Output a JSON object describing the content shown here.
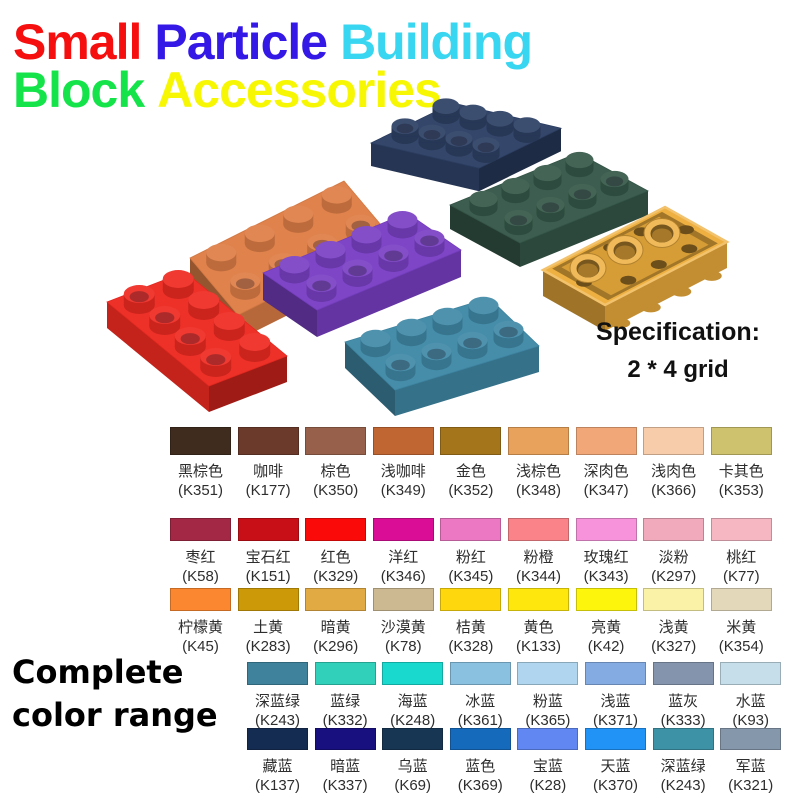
{
  "title": {
    "line1": [
      {
        "text": "Small",
        "color": "#f50f0f"
      },
      {
        "text": "Particle",
        "color": "#3418e6"
      },
      {
        "text": "Building",
        "color": "#38d6f0"
      }
    ],
    "line2": [
      {
        "text": "Block",
        "color": "#14e44a"
      },
      {
        "text": "Accessories",
        "color": "#f7f704"
      }
    ]
  },
  "specification": {
    "line1": "Specification:",
    "line2": "2 * 4 grid"
  },
  "complete_range": {
    "line1": "Complete",
    "line2": "color range"
  },
  "bricks": [
    {
      "name": "navy-blue",
      "color": "#2e4166"
    },
    {
      "name": "orange",
      "color": "#df7f47"
    },
    {
      "name": "dark-green",
      "color": "#36594a"
    },
    {
      "name": "purple",
      "color": "#7b41c6"
    },
    {
      "name": "gold",
      "color": "#eeae3c"
    },
    {
      "name": "red",
      "color": "#ee2b22"
    },
    {
      "name": "teal-blue",
      "color": "#418aa8"
    }
  ],
  "palette": {
    "rows": [
      {
        "swatches": [
          {
            "name": "黑棕色",
            "code": "(K351)",
            "color": "#3f2c1e"
          },
          {
            "name": "咖啡",
            "code": "(K177)",
            "color": "#6b3a2b"
          },
          {
            "name": "棕色",
            "code": "(K350)",
            "color": "#96604a"
          },
          {
            "name": "浅咖啡",
            "code": "(K349)",
            "color": "#c06633"
          },
          {
            "name": "金色",
            "code": "(K352)",
            "color": "#a4751b"
          },
          {
            "name": "浅棕色",
            "code": "(K348)",
            "color": "#e9a25b"
          },
          {
            "name": "深肉色",
            "code": "(K347)",
            "color": "#f2a779"
          },
          {
            "name": "浅肉色",
            "code": "(K366)",
            "color": "#f7ccab"
          },
          {
            "name": "卡其色",
            "code": "(K353)",
            "color": "#cec26e"
          }
        ]
      },
      {
        "swatches": [
          {
            "name": "枣红",
            "code": "(K58)",
            "color": "#a32845"
          },
          {
            "name": "宝石红",
            "code": "(K151)",
            "color": "#c80e16"
          },
          {
            "name": "红色",
            "code": "(K329)",
            "color": "#fb0a0a"
          },
          {
            "name": "洋红",
            "code": "(K346)",
            "color": "#d90d96"
          },
          {
            "name": "粉红",
            "code": "(K345)",
            "color": "#ec77c2"
          },
          {
            "name": "粉橙",
            "code": "(K344)",
            "color": "#f98389"
          },
          {
            "name": "玫瑰红",
            "code": "(K343)",
            "color": "#f793db"
          },
          {
            "name": "淡粉",
            "code": "(K297)",
            "color": "#f0aabb"
          },
          {
            "name": "桃红",
            "code": "(K77)",
            "color": "#f6b7c3"
          }
        ]
      },
      {
        "swatches": [
          {
            "name": "柠檬黄",
            "code": "(K45)",
            "color": "#fb8830"
          },
          {
            "name": "土黄",
            "code": "(K283)",
            "color": "#cc9a08"
          },
          {
            "name": "暗黄",
            "code": "(K296)",
            "color": "#e2aa42"
          },
          {
            "name": "沙漠黄",
            "code": "(K78)",
            "color": "#ccb992"
          },
          {
            "name": "桔黄",
            "code": "(K328)",
            "color": "#fed80d"
          },
          {
            "name": "黄色",
            "code": "(K133)",
            "color": "#fee70d"
          },
          {
            "name": "亮黄",
            "code": "(K42)",
            "color": "#fef50d"
          },
          {
            "name": "浅黄",
            "code": "(K327)",
            "color": "#faf3a7"
          },
          {
            "name": "米黄",
            "code": "(K354)",
            "color": "#e3d9ba"
          }
        ]
      },
      {
        "swatches": [
          {
            "name": "深蓝绿",
            "code": "(K243)",
            "color": "#3e839b"
          },
          {
            "name": "蓝绿",
            "code": "(K332)",
            "color": "#31d0ba"
          },
          {
            "name": "海蓝",
            "code": "(K248)",
            "color": "#19d8ce"
          },
          {
            "name": "冰蓝",
            "code": "(K361)",
            "color": "#8ac1e1"
          },
          {
            "name": "粉蓝",
            "code": "(K365)",
            "color": "#afd6ee"
          },
          {
            "name": "浅蓝",
            "code": "(K371)",
            "color": "#84ace3"
          },
          {
            "name": "蓝灰",
            "code": "(K333)",
            "color": "#8494ac"
          },
          {
            "name": "水蓝",
            "code": "(K93)",
            "color": "#c5deea"
          }
        ]
      },
      {
        "swatches": [
          {
            "name": "藏蓝",
            "code": "(K137)",
            "color": "#152c52"
          },
          {
            "name": "暗蓝",
            "code": "(K337)",
            "color": "#17107e"
          },
          {
            "name": "乌蓝",
            "code": "(K69)",
            "color": "#173654"
          },
          {
            "name": "蓝色",
            "code": "(K369)",
            "color": "#166abb"
          },
          {
            "name": "宝蓝",
            "code": "(K28)",
            "color": "#6188f2"
          },
          {
            "name": "天蓝",
            "code": "(K370)",
            "color": "#2192f6"
          },
          {
            "name": "深蓝绿",
            "code": "(K243)",
            "color": "#3e92a6"
          },
          {
            "name": "军蓝",
            "code": "(K321)",
            "color": "#8597aa"
          }
        ]
      }
    ]
  }
}
